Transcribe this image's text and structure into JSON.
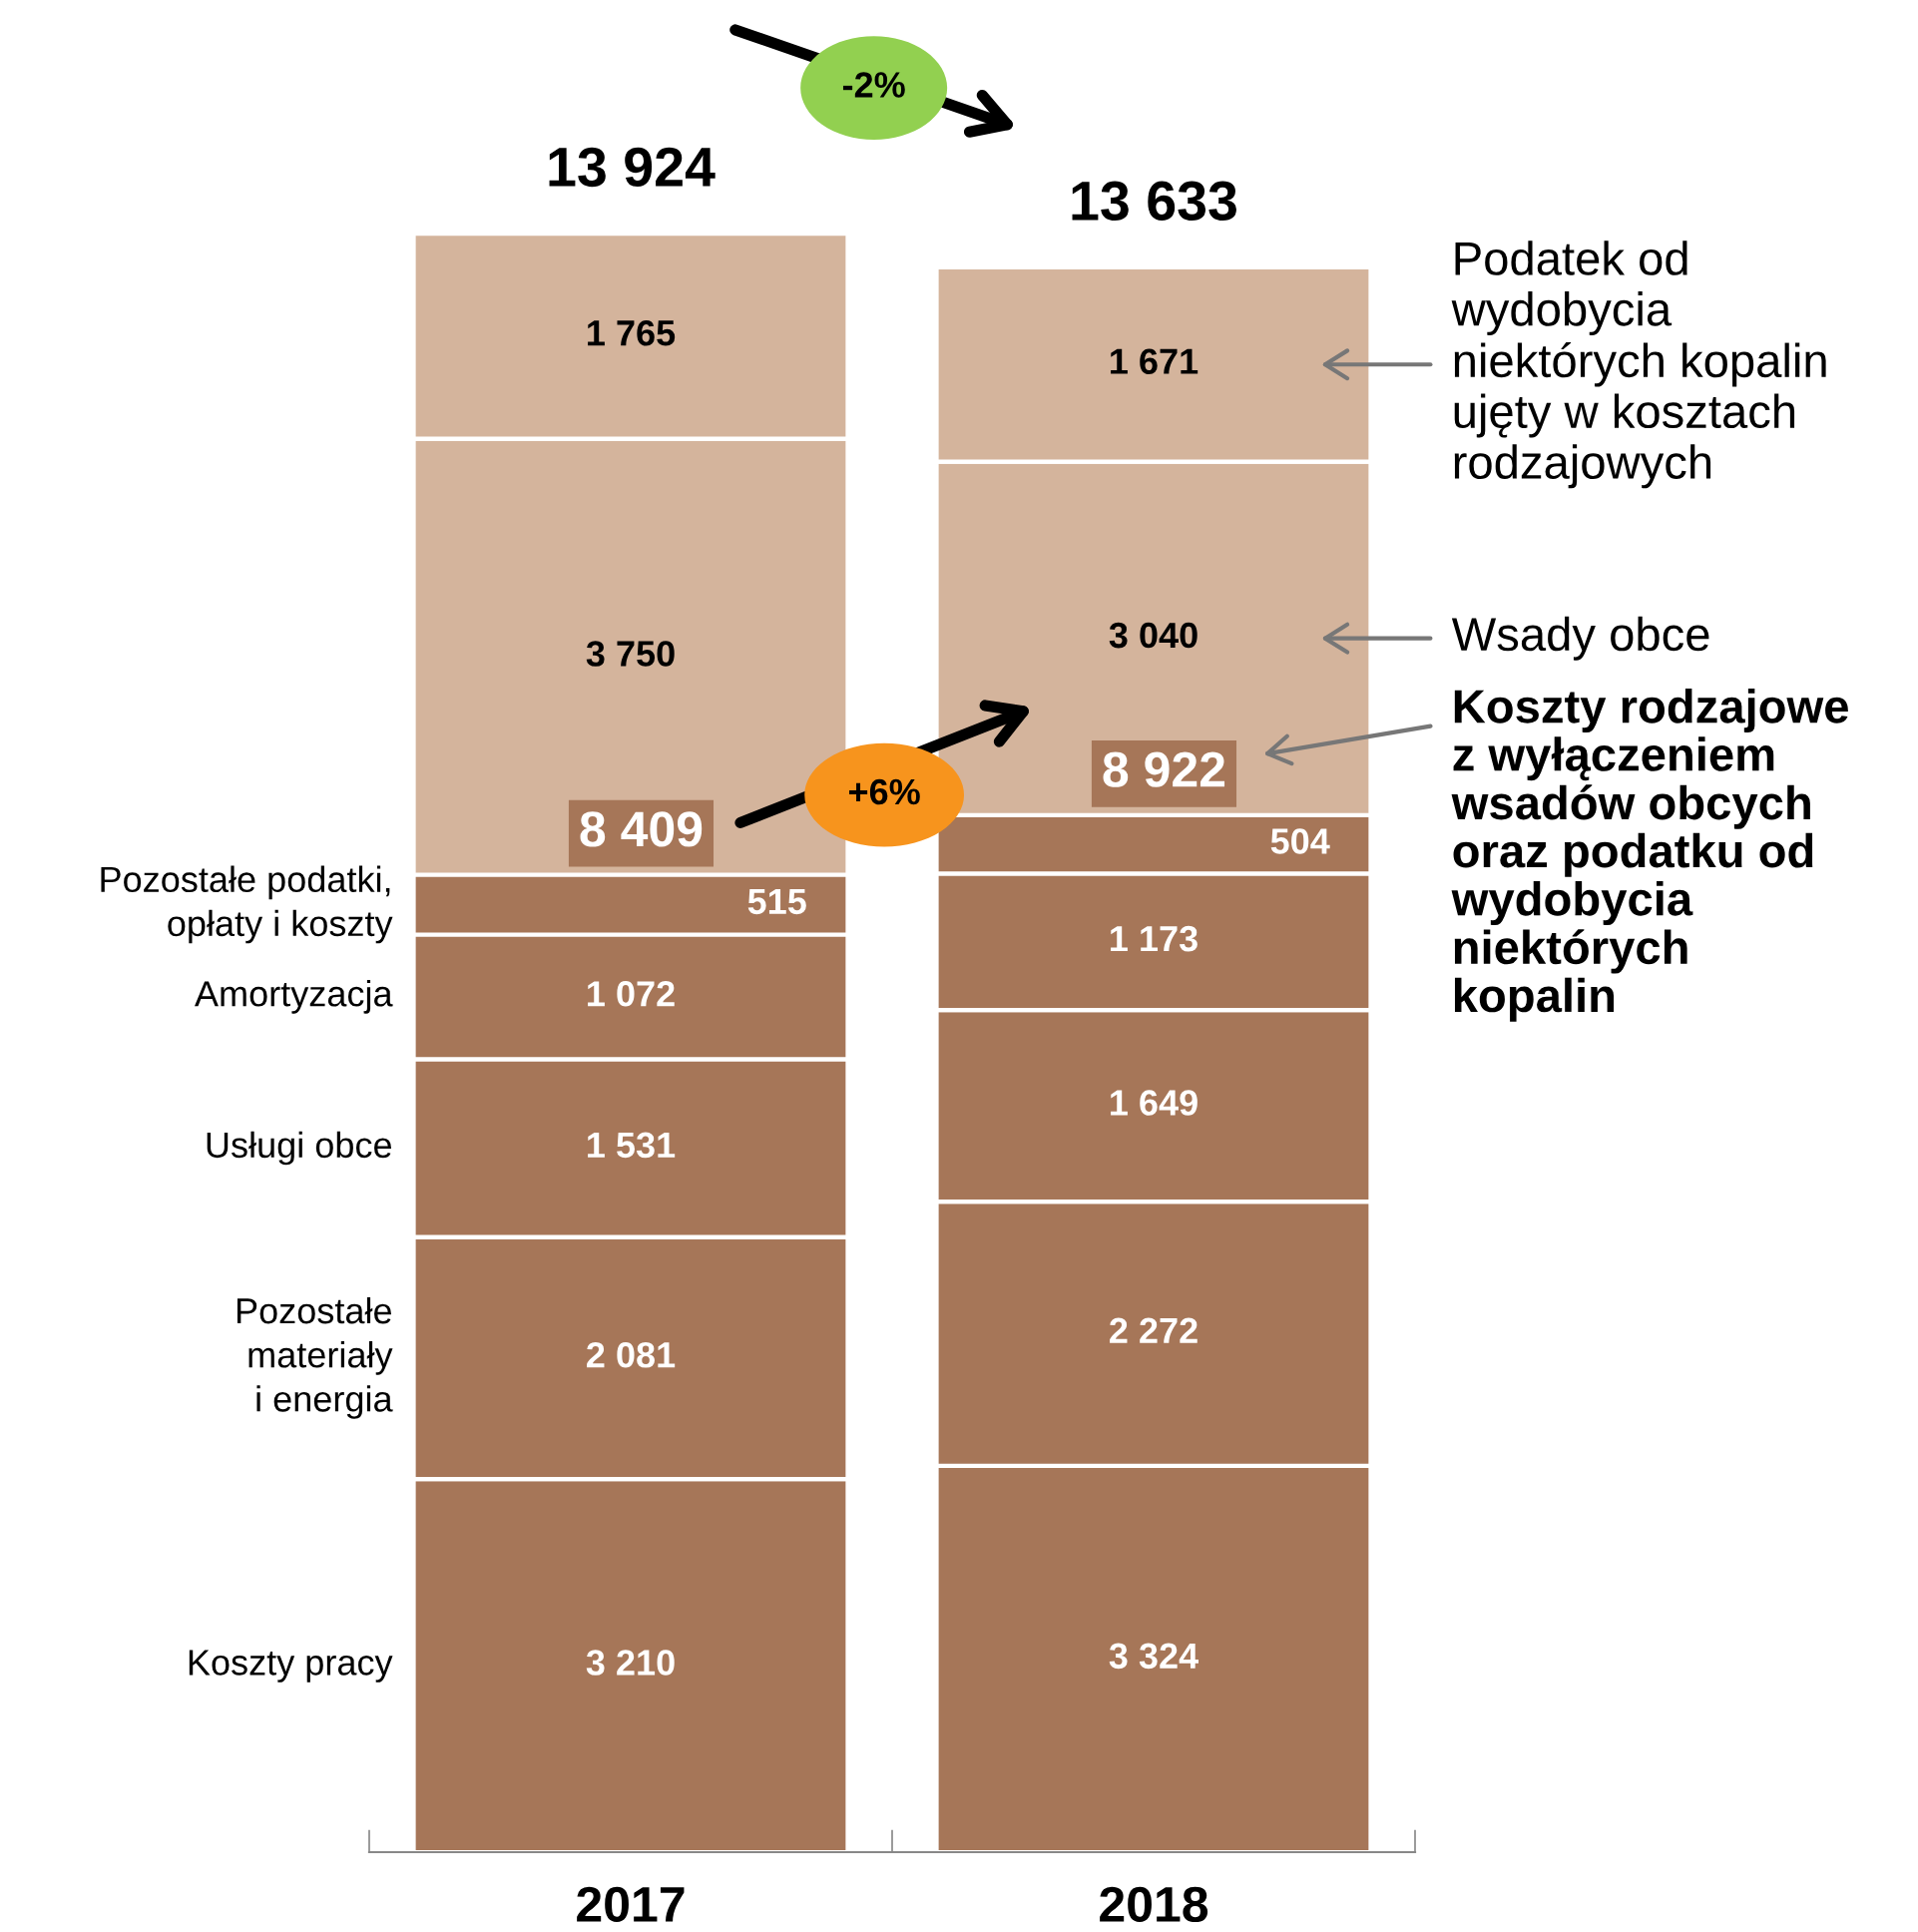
{
  "chart_data": {
    "type": "bar",
    "stacked": true,
    "categories": [
      "2017",
      "2018"
    ],
    "series": [
      {
        "name": "Koszty pracy",
        "color": "#a67658",
        "values": [
          3210,
          3324
        ],
        "value_labels": [
          "3 210",
          "3 324"
        ]
      },
      {
        "name": "Pozostałe\nmateriały\ni energia",
        "color": "#a67658",
        "values": [
          2081,
          2272
        ],
        "value_labels": [
          "2 081",
          "2 272"
        ]
      },
      {
        "name": "Usługi obce",
        "color": "#a67658",
        "values": [
          1531,
          1649
        ],
        "value_labels": [
          "1 531",
          "1 649"
        ]
      },
      {
        "name": "Amortyzacja",
        "color": "#a67658",
        "values": [
          1072,
          1173
        ],
        "value_labels": [
          "1 072",
          "1 173"
        ]
      },
      {
        "name": "Pozostałe podatki,\nopłaty i koszty",
        "color": "#a67658",
        "values": [
          515,
          504
        ],
        "value_labels": [
          "515",
          "504"
        ]
      },
      {
        "name": "Wsady obce",
        "color": "#d4b49c",
        "values": [
          3750,
          3040
        ],
        "value_labels": [
          "3 750",
          "3 040"
        ]
      },
      {
        "name": "Podatek od\nwydobycia\nniektórych kopalin\nujęty w kosztach\nrodzajowych",
        "color": "#d4b49c",
        "values": [
          1765,
          1671
        ],
        "value_labels": [
          "1 765",
          "1 671"
        ]
      }
    ],
    "totals": [
      "13 924",
      "13 633"
    ],
    "annotations": [
      "-2%",
      "+6%",
      {
        "text": "8 409",
        "x": "2017",
        "y": 8409
      },
      {
        "text": "8 922",
        "x": "2018",
        "y": 8922
      },
      "Koszty rodzajowe\nz wyłączeniem\nwsadów obcych\noraz podatku od\nwydobycia\nniektórych\nkopalin"
    ],
    "legend": false,
    "grid": false
  }
}
